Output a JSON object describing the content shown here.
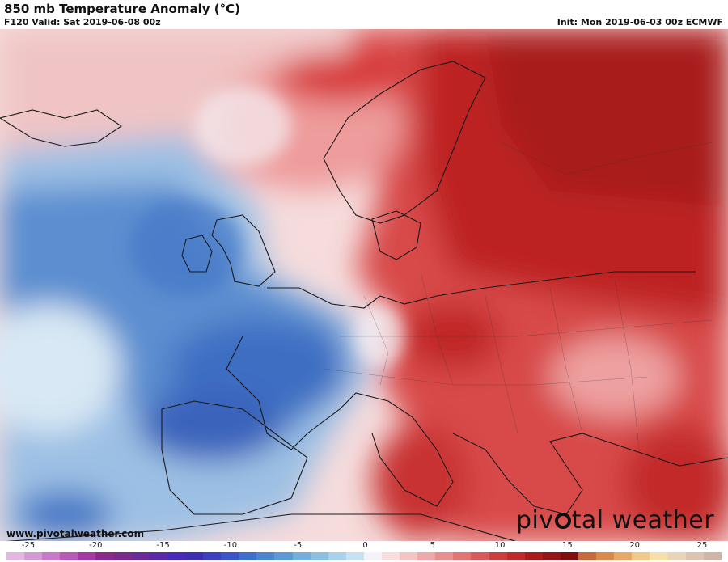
{
  "header": {
    "title": "850 mb Temperature Anomaly (°C)",
    "subtitle": "F120 Valid: Sat 2019-06-08 00z",
    "init": "Init: Mon 2019-06-03 00z ECMWF"
  },
  "footer": {
    "url": "www.pivotalweather.com",
    "brand_left": "piv",
    "brand_right": "tal weather"
  },
  "colorbar": {
    "ticks": [
      "-25",
      "-20",
      "-15",
      "-10",
      "-5",
      "0",
      "5",
      "10",
      "15",
      "20",
      "25"
    ],
    "colors": [
      "#e0b8e0",
      "#d49ad4",
      "#c87ac8",
      "#b85ab8",
      "#a53aa5",
      "#8c2a8c",
      "#7a2a8a",
      "#6a2a9a",
      "#5a2aaa",
      "#4a2aba",
      "#3f2fb0",
      "#3b3fc0",
      "#3a55c8",
      "#3d6ecc",
      "#4a86d0",
      "#5b9ad6",
      "#73aedc",
      "#8cc0e2",
      "#a8d2ea",
      "#c6e2f2",
      "#f4f4f8",
      "#f8dede",
      "#f4c4c4",
      "#eeaaaa",
      "#e88f8f",
      "#e27474",
      "#d85a5a",
      "#cc3f3f",
      "#c02a2a",
      "#aa1c1c",
      "#951414",
      "#800e0e",
      "#c76a3c",
      "#d98a4a",
      "#e6a866",
      "#f0c888",
      "#f6e0aa",
      "#e8d4b8",
      "#dcc4b0",
      "#d0b4a8"
    ]
  }
}
